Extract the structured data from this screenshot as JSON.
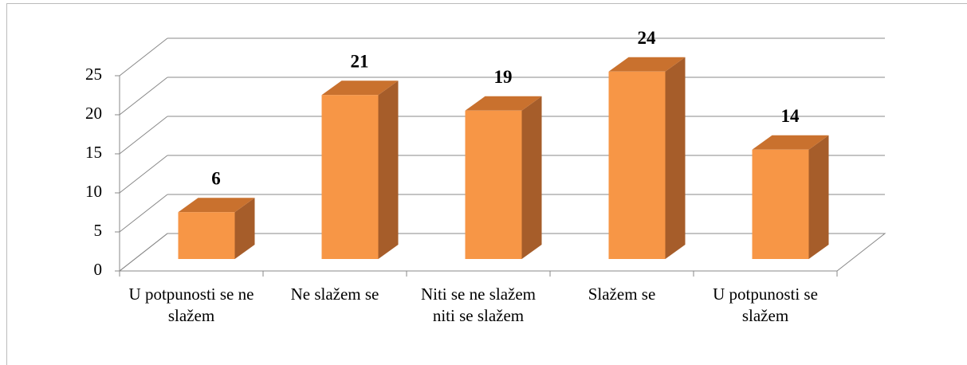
{
  "chart_data": {
    "type": "bar3d",
    "categories": [
      "U potpunosti se ne slažem",
      "Ne slažem se",
      "Niti se ne slažem niti se slažem",
      "Slažem se",
      "U potpunosti se slažem"
    ],
    "values": [
      6,
      21,
      19,
      24,
      14
    ],
    "color": "#f79646",
    "ylim": [
      0,
      25
    ],
    "yticks": [
      0,
      5,
      10,
      15,
      20,
      25
    ],
    "grid": true
  }
}
